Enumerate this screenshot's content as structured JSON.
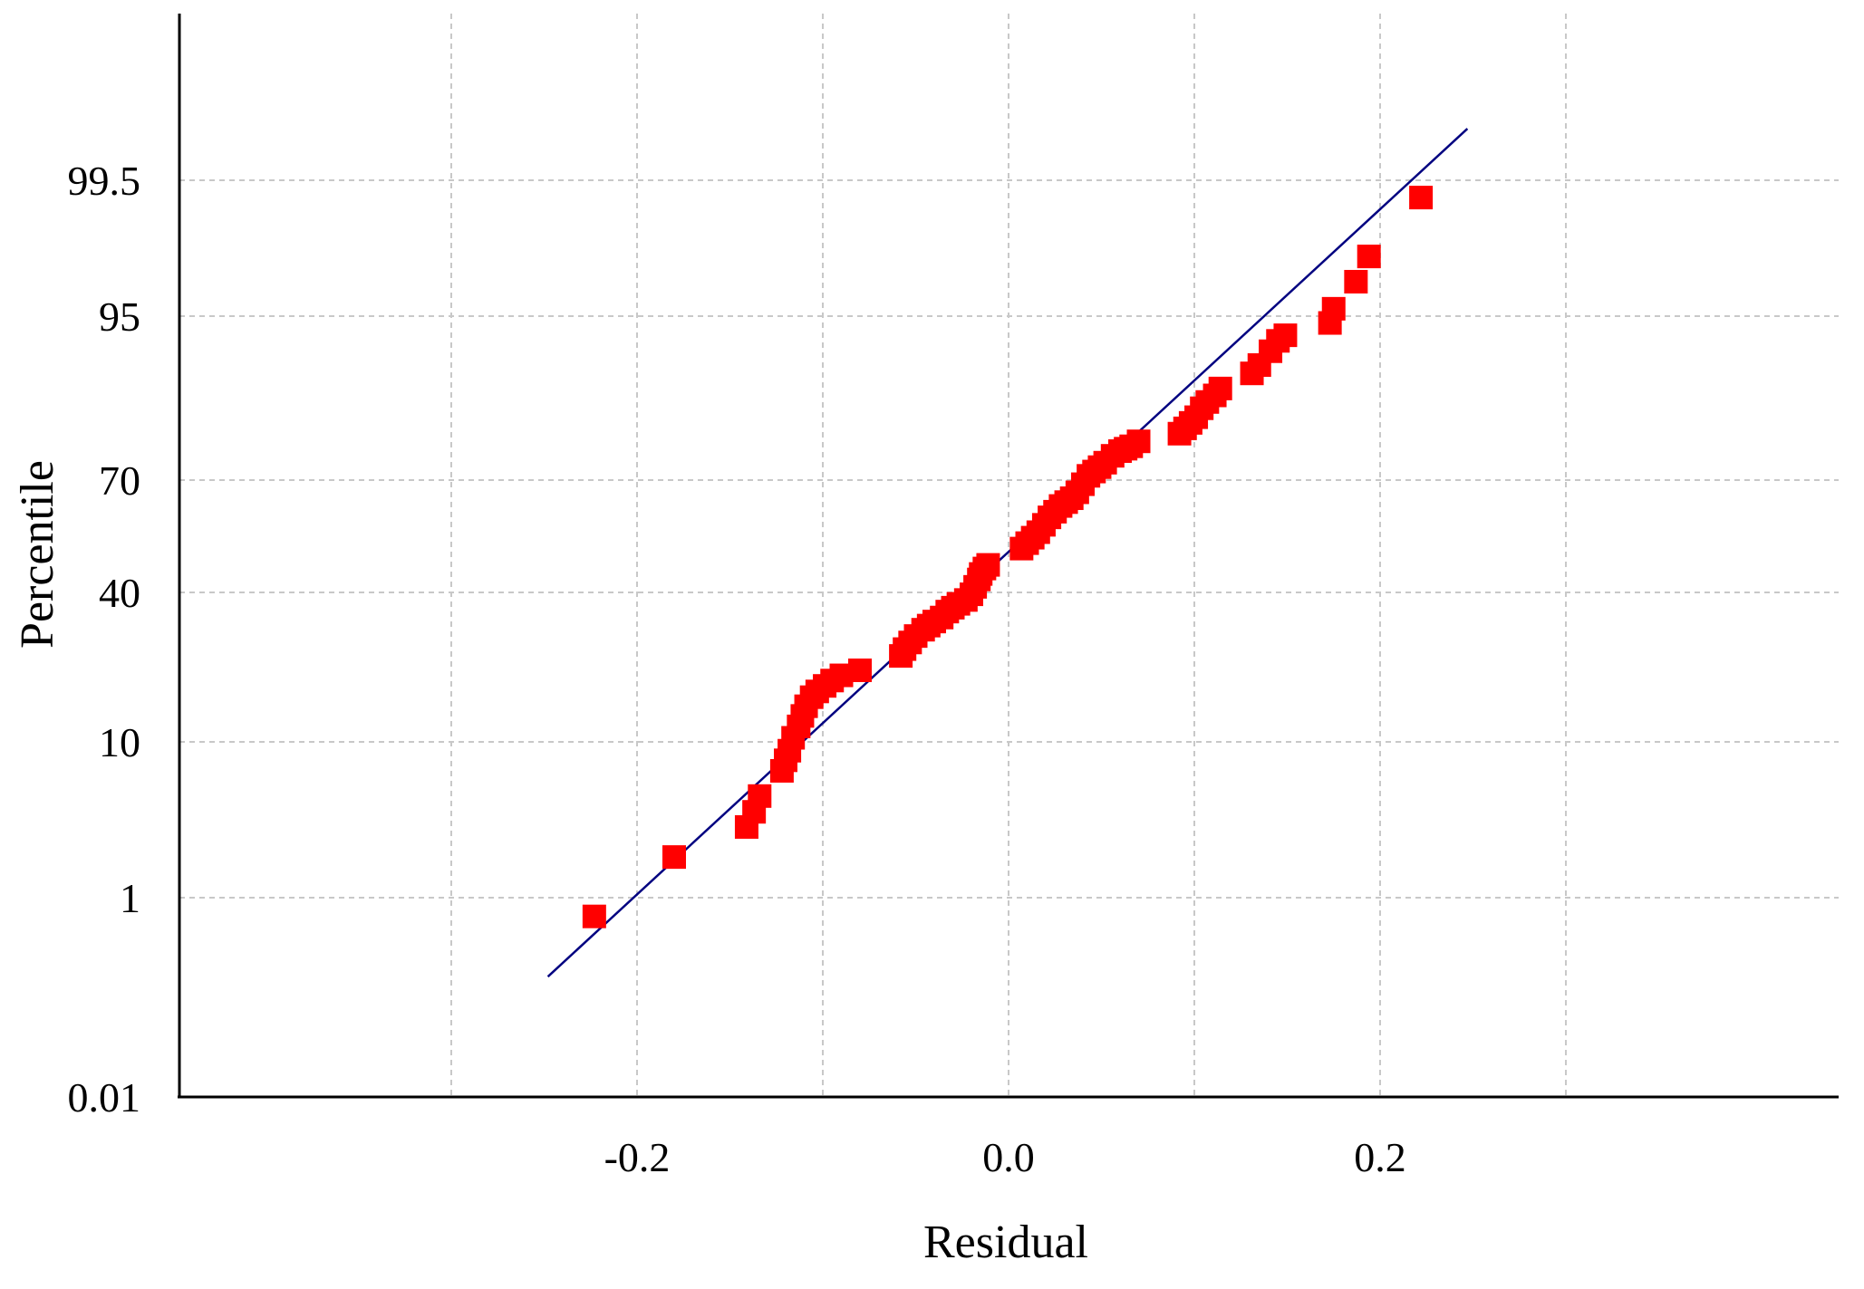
{
  "chart_data": {
    "type": "scatter",
    "title": "",
    "xlabel": "Residual",
    "ylabel": "Percentile",
    "x_scale": "linear",
    "y_scale": "normal-probability",
    "xlim": [
      -0.3,
      0.3
    ],
    "x_ticks": [
      -0.2,
      0.0,
      0.2
    ],
    "x_tick_labels": [
      "-0.2",
      "0.0",
      "0.2"
    ],
    "y_ticks": [
      0.01,
      1,
      10,
      40,
      70,
      95,
      99.5
    ],
    "y_tick_labels": [
      "0.01",
      "1",
      "10",
      "40",
      "70",
      "95",
      "99.5"
    ],
    "grid": true,
    "grid_style": "dashed",
    "point_color": "#ff0000",
    "line_color": "#000080",
    "fit_line": {
      "x": [
        -0.248,
        0.247
      ],
      "y": [
        0.2,
        99.83
      ]
    },
    "points": {
      "x": [
        -0.223,
        -0.18,
        -0.141,
        -0.137,
        -0.134,
        -0.122,
        -0.12,
        -0.118,
        -0.116,
        -0.113,
        -0.111,
        -0.109,
        -0.106,
        -0.103,
        -0.099,
        -0.095,
        -0.09,
        -0.08,
        -0.058,
        -0.056,
        -0.053,
        -0.05,
        -0.046,
        -0.043,
        -0.04,
        -0.036,
        -0.033,
        -0.03,
        -0.027,
        -0.023,
        -0.02,
        -0.018,
        -0.016,
        -0.015,
        -0.013,
        -0.011,
        0.007,
        0.01,
        0.013,
        0.016,
        0.019,
        0.022,
        0.025,
        0.028,
        0.031,
        0.034,
        0.037,
        0.04,
        0.043,
        0.046,
        0.049,
        0.052,
        0.056,
        0.06,
        0.063,
        0.066,
        0.07,
        0.092,
        0.095,
        0.098,
        0.101,
        0.104,
        0.107,
        0.111,
        0.114,
        0.131,
        0.135,
        0.141,
        0.145,
        0.149,
        0.173,
        0.175,
        0.187,
        0.194,
        0.222
      ],
      "y": [
        0.7,
        2.0,
        3.2,
        4.0,
        5.0,
        7.0,
        8.0,
        9.0,
        10.5,
        12.0,
        13.5,
        15.0,
        16.5,
        17.5,
        18.5,
        19.5,
        20.5,
        21.5,
        24.5,
        26.0,
        27.5,
        29.0,
        30.5,
        31.5,
        32.5,
        33.5,
        35.0,
        36.0,
        37.0,
        38.0,
        39.5,
        41.5,
        43.5,
        45.0,
        46.5,
        47.5,
        52.0,
        53.5,
        55.0,
        56.5,
        58.5,
        60.5,
        62.0,
        63.5,
        64.5,
        65.5,
        67.0,
        69.0,
        71.0,
        72.0,
        73.0,
        74.0,
        75.5,
        76.5,
        77.0,
        77.5,
        78.5,
        80.0,
        81.0,
        82.0,
        83.0,
        84.5,
        85.5,
        86.5,
        87.5,
        89.5,
        90.5,
        92.0,
        93.0,
        93.5,
        94.5,
        95.5,
        97.0,
        98.0,
        99.3
      ]
    }
  }
}
